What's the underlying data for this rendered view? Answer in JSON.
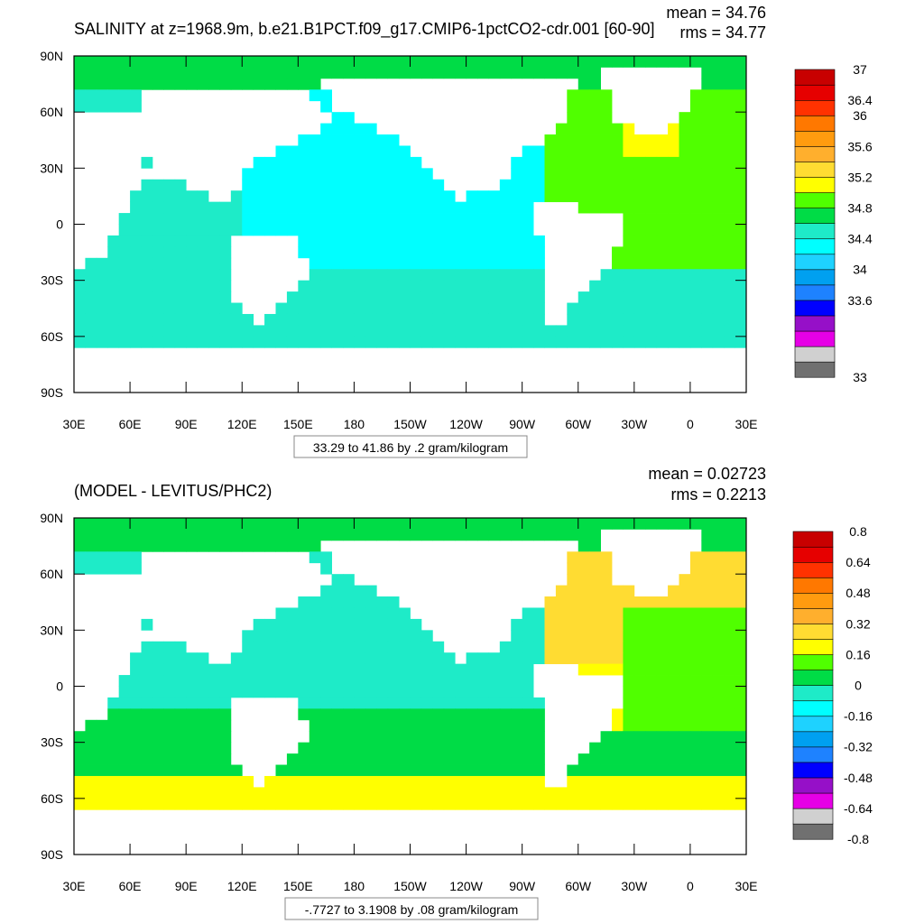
{
  "chart_data": [
    {
      "type": "heatmap",
      "title": "SALINITY at z=1968.9m, b.e21.B1PCT.f09_g17.CMIP6-1pctCO2-cdr.001 [60-90]",
      "stats": {
        "mean": "mean = 34.76",
        "rms": "rms = 34.77"
      },
      "range_label": "33.29 to 41.86 by .2 gram/kilogram",
      "y_ticks": [
        "90N",
        "60N",
        "30N",
        "0",
        "30S",
        "60S",
        "90S"
      ],
      "x_ticks": [
        "30E",
        "60E",
        "90E",
        "120E",
        "150E",
        "180",
        "150W",
        "120W",
        "90W",
        "60W",
        "30W",
        "0",
        "30E"
      ],
      "colorbar": {
        "colors": [
          "#707070",
          "#d0d0d0",
          "#e600e6",
          "#9610c8",
          "#0000ff",
          "#1e82ff",
          "#00a0f0",
          "#1ed2ff",
          "#00ffff",
          "#1eebc8",
          "#00dc46",
          "#50ff00",
          "#ffff00",
          "#ffdc32",
          "#ffaf2d",
          "#ff9b0f",
          "#ff7800",
          "#ff3200",
          "#e60000",
          "#c80000"
        ],
        "labels": [
          "33",
          "33.6",
          "34",
          "34.4",
          "34.8",
          "35.2",
          "35.6",
          "36",
          "36.4",
          "37"
        ],
        "label_edges": [
          0,
          5,
          7,
          9,
          11,
          13,
          15,
          17,
          18,
          20
        ]
      }
    },
    {
      "type": "heatmap",
      "title": "(MODEL - LEVITUS/PHC2)",
      "stats": {
        "mean": "mean = 0.02723",
        "rms": "rms = 0.2213"
      },
      "range_label": "-.7727 to 3.1908 by .08 gram/kilogram",
      "y_ticks": [
        "90N",
        "60N",
        "30N",
        "0",
        "30S",
        "60S",
        "90S"
      ],
      "x_ticks": [
        "30E",
        "60E",
        "90E",
        "120E",
        "150E",
        "180",
        "150W",
        "120W",
        "90W",
        "60W",
        "30W",
        "0",
        "30E"
      ],
      "colorbar": {
        "colors": [
          "#707070",
          "#d0d0d0",
          "#e600e6",
          "#9610c8",
          "#0000ff",
          "#1e82ff",
          "#00a0f0",
          "#1ed2ff",
          "#00ffff",
          "#1eebc8",
          "#00dc46",
          "#50ff00",
          "#ffff00",
          "#ffdc32",
          "#ffaf2d",
          "#ff9b0f",
          "#ff7800",
          "#ff3200",
          "#e60000",
          "#c80000"
        ],
        "labels": [
          "-0.8",
          "-0.64",
          "-0.48",
          "-0.32",
          "-0.16",
          "0",
          "0.16",
          "0.32",
          "0.48",
          "0.64",
          "0.8"
        ],
        "label_edges": [
          0,
          2,
          4,
          6,
          8,
          10,
          12,
          14,
          16,
          18,
          20
        ]
      }
    }
  ]
}
